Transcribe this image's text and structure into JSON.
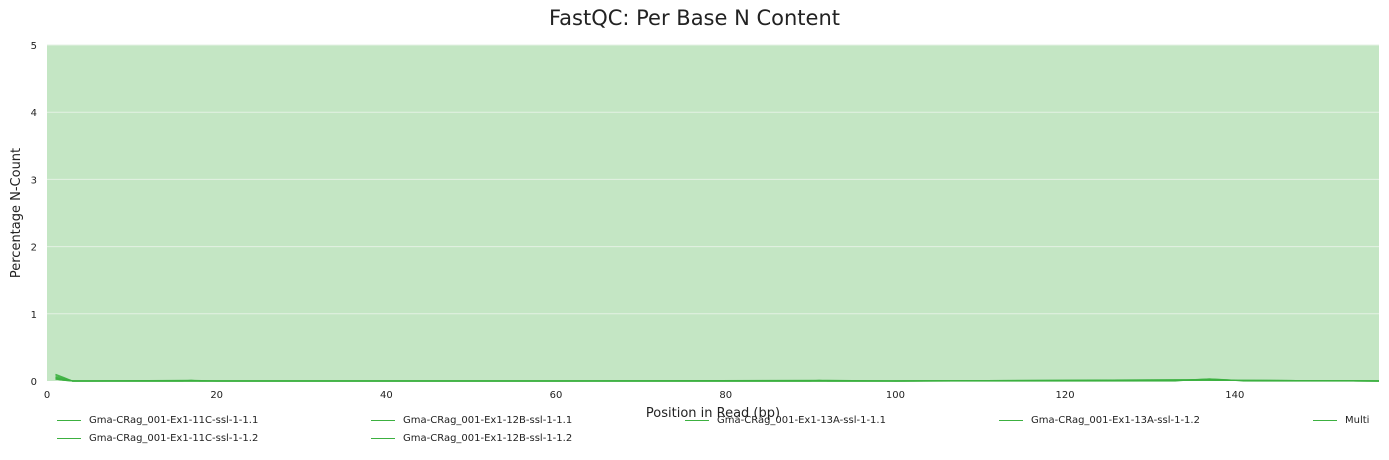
{
  "chart_data": {
    "type": "line",
    "title": "FastQC: Per Base N Content",
    "xlabel": "Position in Read (bp)",
    "ylabel": "Percentage N-Count",
    "xlim": [
      0,
      157
    ],
    "ylim": [
      0,
      5
    ],
    "x_ticks": [
      "0",
      "20",
      "40",
      "60",
      "80",
      "100",
      "120",
      "140"
    ],
    "y_ticks": [
      "0",
      "1",
      "2",
      "3",
      "4",
      "5"
    ],
    "grid": true,
    "background_band_color": "#c4e6c4",
    "line_color": "#3cb040",
    "legend_position": "bottom",
    "series": [
      {
        "name": "Gma-CRag_001-Ex1-11C-ssl-1-1.1",
        "x": [
          1,
          2,
          3,
          5,
          10,
          16,
          17,
          18,
          20,
          40,
          60,
          80,
          90,
          91,
          92,
          93,
          100,
          120,
          133,
          135,
          137,
          139,
          141,
          150,
          157
        ],
        "values": [
          0.1,
          0.05,
          0.0,
          0.0,
          0.0,
          0.0,
          0.01,
          0.0,
          0.0,
          0.0,
          0.0,
          0.0,
          0.0,
          0.01,
          0.0,
          0.0,
          0.0,
          0.0,
          0.0,
          0.02,
          0.03,
          0.02,
          0.0,
          0.0,
          0.0
        ]
      },
      {
        "name": "Gma-CRag_001-Ex1-11C-ssl-1-1.2",
        "x": [
          1,
          2,
          3,
          5,
          17,
          20,
          60,
          100,
          134,
          137,
          140,
          157
        ],
        "values": [
          0.08,
          0.04,
          0.0,
          0.0,
          0.01,
          0.0,
          0.0,
          0.0,
          0.01,
          0.03,
          0.01,
          0.0
        ]
      },
      {
        "name": "Gma-CRag_001-Ex1-12B-ssl-1-1.1",
        "x": [
          1,
          2,
          3,
          5,
          17,
          20,
          60,
          92,
          100,
          135,
          137,
          139,
          157
        ],
        "values": [
          0.06,
          0.03,
          0.0,
          0.0,
          0.0,
          0.0,
          0.0,
          0.01,
          0.0,
          0.01,
          0.02,
          0.01,
          0.0
        ]
      },
      {
        "name": "Gma-CRag_001-Ex1-12B-ssl-1-1.2",
        "x": [
          1,
          2,
          3,
          5,
          60,
          100,
          136,
          138,
          157
        ],
        "values": [
          0.05,
          0.02,
          0.0,
          0.0,
          0.0,
          0.0,
          0.02,
          0.01,
          0.0
        ]
      },
      {
        "name": "Gma-CRag_001-Ex1-13A-ssl-1-1.1",
        "x": [
          1,
          2,
          3,
          5,
          60,
          100,
          136,
          138,
          157
        ],
        "values": [
          0.04,
          0.02,
          0.0,
          0.0,
          0.0,
          0.0,
          0.02,
          0.01,
          0.0
        ]
      },
      {
        "name": "Gma-CRag_001-Ex1-13A-ssl-1-1.2",
        "x": [
          1,
          2,
          3,
          5,
          60,
          100,
          137,
          157
        ],
        "values": [
          0.03,
          0.01,
          0.0,
          0.0,
          0.0,
          0.0,
          0.01,
          0.0
        ]
      },
      {
        "name": "Multi",
        "x": [
          1,
          2,
          3,
          5,
          60,
          100,
          137,
          157
        ],
        "values": [
          0.03,
          0.01,
          0.0,
          0.0,
          0.0,
          0.0,
          0.01,
          0.0
        ]
      }
    ]
  }
}
